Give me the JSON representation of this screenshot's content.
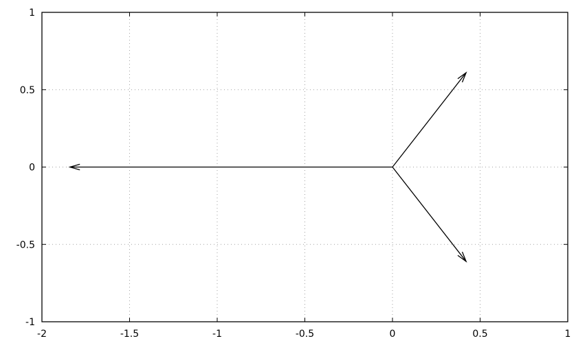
{
  "chart_data": {
    "type": "vector",
    "title": "",
    "xlabel": "",
    "ylabel": "",
    "xlim": [
      -2,
      1
    ],
    "ylim": [
      -1,
      1
    ],
    "grid": true,
    "xticks": [
      "-2",
      "-1.5",
      "-1",
      "-0.5",
      "0",
      "0.5",
      "1"
    ],
    "xtick_values": [
      -2,
      -1.5,
      -1,
      -0.5,
      0,
      0.5,
      1
    ],
    "yticks": [
      "-1",
      "-0.5",
      "0",
      "0.5",
      "1"
    ],
    "ytick_values": [
      -1,
      -0.5,
      0,
      0.5,
      1
    ],
    "vectors": [
      {
        "x0": 0,
        "y0": 0,
        "x1": 0.42,
        "y1": 0.61
      },
      {
        "x0": 0,
        "y0": 0,
        "x1": 0.42,
        "y1": -0.61
      },
      {
        "x0": 0,
        "y0": 0,
        "x1": -1.84,
        "y1": 0
      }
    ],
    "colors": {
      "line": "#000000",
      "grid": "#a0a0a0"
    }
  }
}
